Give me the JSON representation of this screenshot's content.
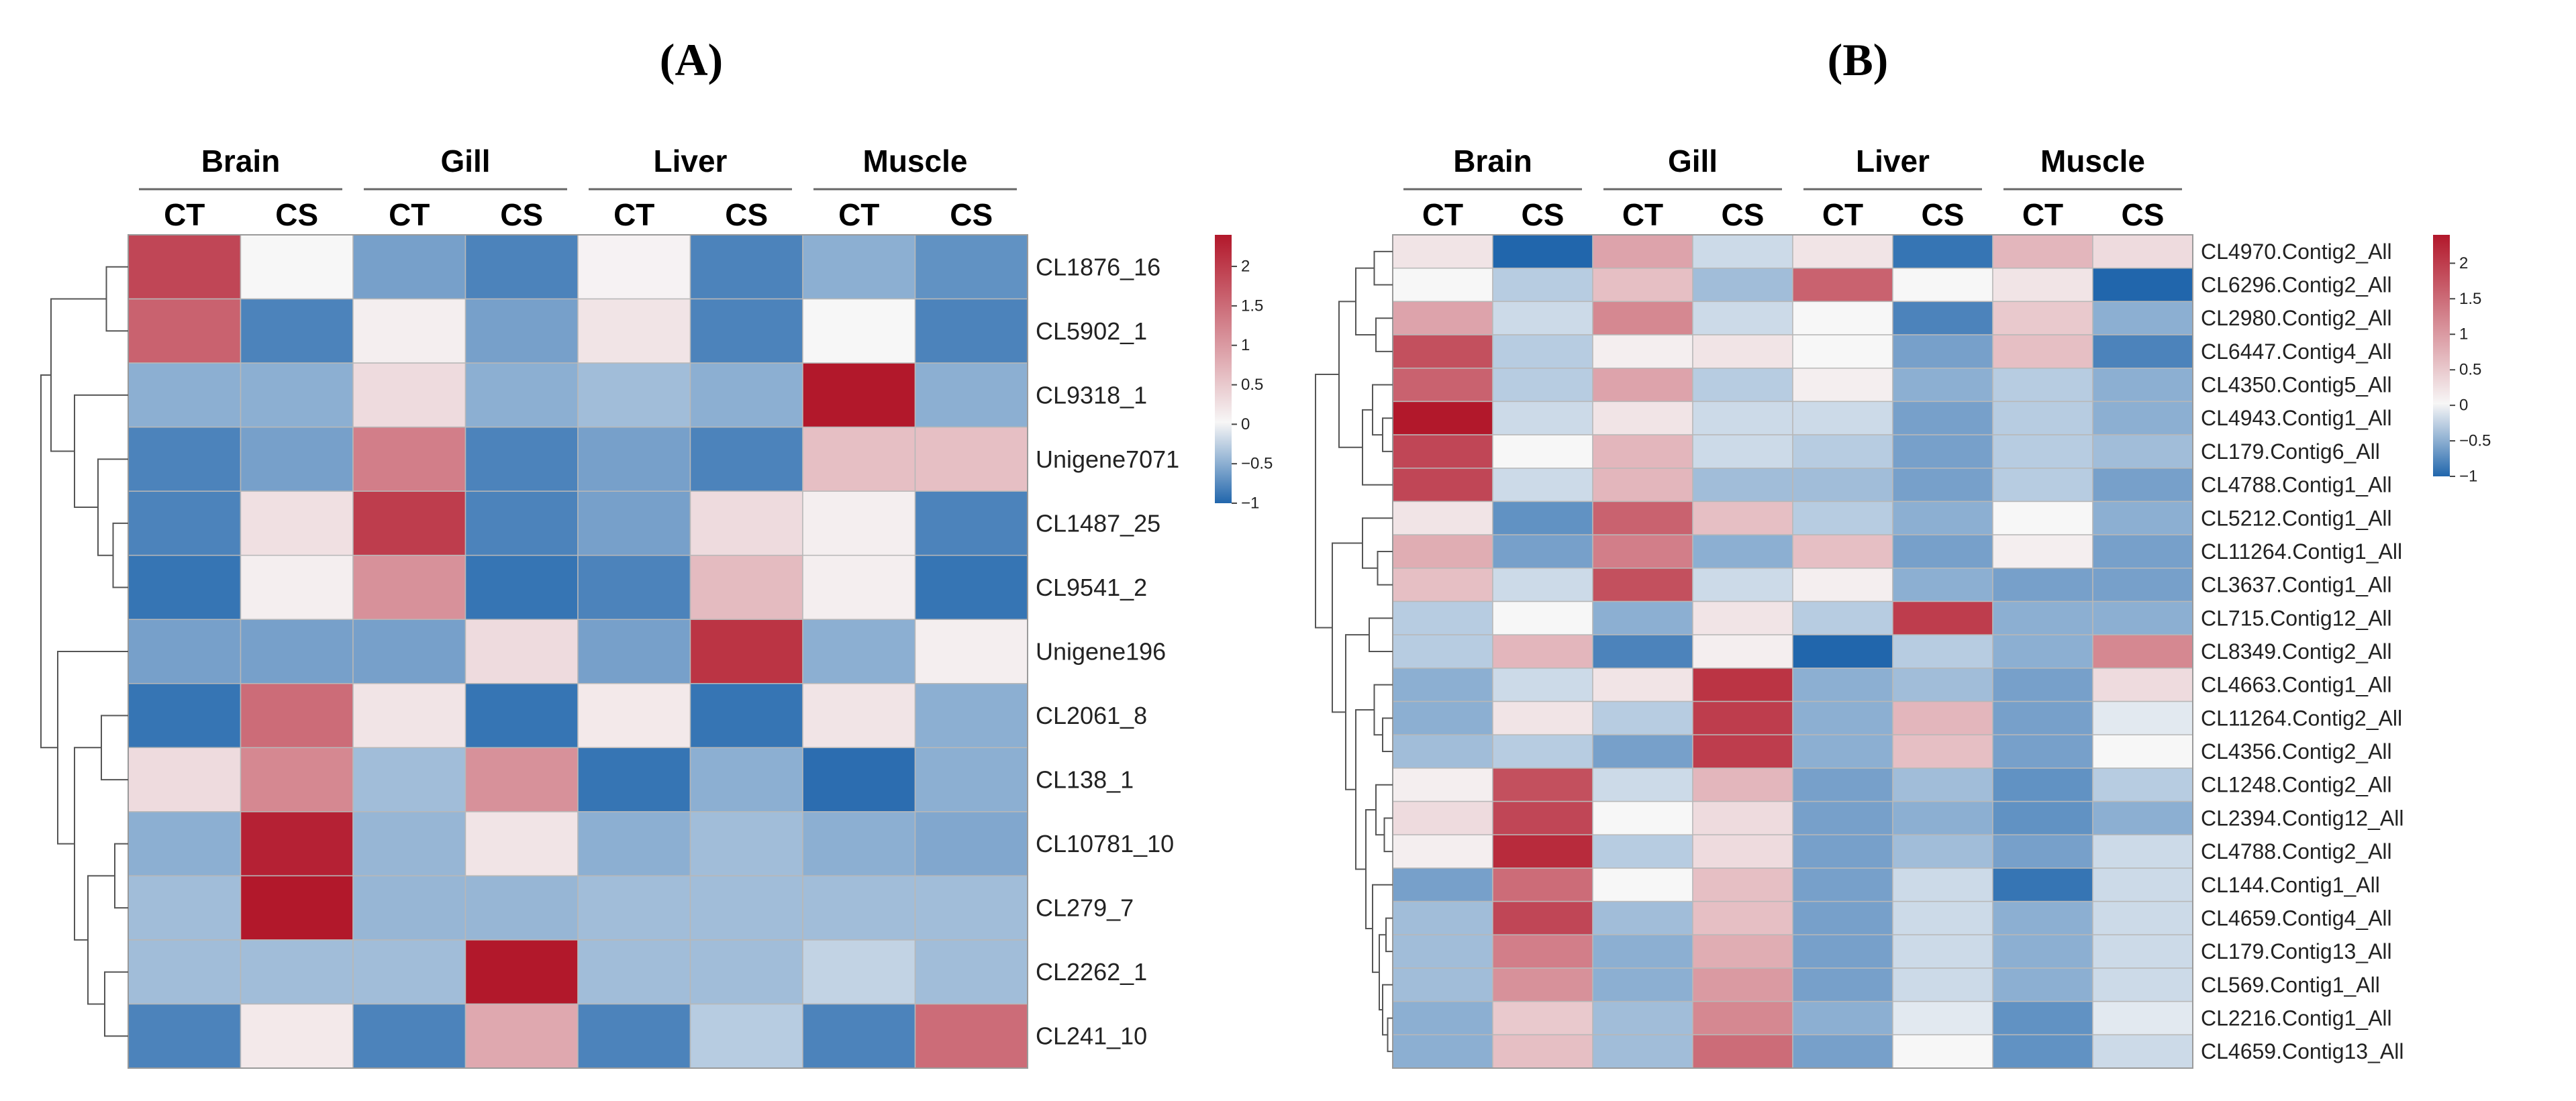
{
  "chart_data": [
    {
      "type": "heatmap",
      "panel_label": "(A)",
      "title": "(A)",
      "tissues": [
        "Brain",
        "Gill",
        "Liver",
        "Muscle"
      ],
      "conditions": [
        "CT",
        "CS"
      ],
      "columns": [
        "Brain CT",
        "Brain CS",
        "Gill CT",
        "Gill CS",
        "Liver CT",
        "Liver CS",
        "Muscle CT",
        "Muscle CS"
      ],
      "rows": [
        "CL1876_16",
        "CL5902_1",
        "CL9318_1",
        "Unigene7071",
        "CL1487_25",
        "CL9541_2",
        "Unigene196",
        "CL2061_8",
        "CL138_1",
        "CL10781_10",
        "CL279_7",
        "CL2262_1",
        "CL241_10"
      ],
      "values": [
        [
          1.9,
          0.0,
          -0.6,
          -0.8,
          0.05,
          -0.8,
          -0.5,
          -0.7
        ],
        [
          1.6,
          -0.8,
          0.1,
          -0.6,
          0.2,
          -0.8,
          0.0,
          -0.8
        ],
        [
          -0.5,
          -0.5,
          0.3,
          -0.5,
          -0.4,
          -0.5,
          2.4,
          -0.5
        ],
        [
          -0.8,
          -0.6,
          1.3,
          -0.8,
          -0.6,
          -0.8,
          0.6,
          0.6
        ],
        [
          -0.8,
          0.25,
          2.0,
          -0.8,
          -0.6,
          0.3,
          0.1,
          -0.8
        ],
        [
          -0.9,
          0.1,
          1.1,
          -0.9,
          -0.8,
          0.65,
          0.1,
          -0.9
        ],
        [
          -0.6,
          -0.6,
          -0.6,
          0.3,
          -0.6,
          2.1,
          -0.5,
          0.1
        ],
        [
          -0.9,
          1.5,
          0.2,
          -0.9,
          0.15,
          -0.9,
          0.2,
          -0.5
        ],
        [
          0.3,
          1.2,
          -0.4,
          1.1,
          -0.9,
          -0.5,
          -0.95,
          -0.5
        ],
        [
          -0.5,
          2.3,
          -0.45,
          0.2,
          -0.5,
          -0.4,
          -0.5,
          -0.55
        ],
        [
          -0.4,
          2.4,
          -0.45,
          -0.45,
          -0.4,
          -0.4,
          -0.4,
          -0.4
        ],
        [
          -0.4,
          -0.4,
          -0.4,
          2.4,
          -0.4,
          -0.4,
          -0.25,
          -0.4
        ],
        [
          -0.8,
          0.15,
          -0.8,
          0.85,
          -0.8,
          -0.3,
          -0.8,
          1.5
        ]
      ],
      "colorbar": {
        "ticks": [
          "2",
          "1.5",
          "1",
          "0.5",
          "0",
          "−0.5",
          "−1"
        ],
        "range": [
          -1,
          2.4
        ]
      },
      "colors": {
        "low": "#2166ac",
        "mid": "#f7f7f7",
        "high": "#b2182b"
      }
    },
    {
      "type": "heatmap",
      "panel_label": "(B)",
      "title": "(B)",
      "tissues": [
        "Brain",
        "Gill",
        "Liver",
        "Muscle"
      ],
      "conditions": [
        "CT",
        "CS"
      ],
      "columns": [
        "Brain CT",
        "Brain CS",
        "Gill CT",
        "Gill CS",
        "Liver CT",
        "Liver CS",
        "Muscle CT",
        "Muscle CS"
      ],
      "rows": [
        "CL4970.Contig2_All",
        "CL6296.Contig2_All",
        "CL2980.Contig2_All",
        "CL6447.Contig4_All",
        "CL4350.Contig5_All",
        "CL4943.Contig1_All",
        "CL179.Contig6_All",
        "CL4788.Contig1_All",
        "CL5212.Contig1_All",
        "CL11264.Contig1_All",
        "CL3637.Contig1_All",
        "CL715.Contig12_All",
        "CL8349.Contig2_All",
        "CL4663.Contig1_All",
        "CL11264.Contig2_All",
        "CL4356.Contig2_All",
        "CL1248.Contig2_All",
        "CL2394.Contig12_All",
        "CL4788.Contig2_All",
        "CL144.Contig1_All",
        "CL4659.Contig4_All",
        "CL179.Contig13_All",
        "CL569.Contig1_All",
        "CL2216.Contig1_All",
        "CL4659.Contig13_All"
      ],
      "values": [
        [
          0.2,
          -1.0,
          0.9,
          -0.2,
          0.2,
          -0.9,
          0.7,
          0.3
        ],
        [
          0.0,
          -0.3,
          0.6,
          -0.4,
          1.6,
          0.0,
          0.2,
          -1.0
        ],
        [
          0.9,
          -0.2,
          1.2,
          -0.2,
          0.0,
          -0.8,
          0.5,
          -0.5
        ],
        [
          1.8,
          -0.3,
          0.1,
          0.2,
          0.0,
          -0.6,
          0.6,
          -0.8
        ],
        [
          1.6,
          -0.3,
          0.9,
          -0.3,
          0.1,
          -0.5,
          -0.3,
          -0.5
        ],
        [
          2.4,
          -0.2,
          0.2,
          -0.2,
          -0.2,
          -0.6,
          -0.3,
          -0.5
        ],
        [
          1.9,
          0.0,
          0.7,
          -0.2,
          -0.3,
          -0.6,
          -0.3,
          -0.4
        ],
        [
          1.9,
          -0.2,
          0.7,
          -0.4,
          -0.4,
          -0.6,
          -0.3,
          -0.6
        ],
        [
          0.2,
          -0.7,
          1.6,
          0.6,
          -0.3,
          -0.5,
          0.0,
          -0.5
        ],
        [
          0.8,
          -0.6,
          1.3,
          -0.5,
          0.6,
          -0.6,
          0.1,
          -0.6
        ],
        [
          0.6,
          -0.2,
          1.8,
          -0.2,
          0.1,
          -0.5,
          -0.6,
          -0.6
        ],
        [
          -0.3,
          0.0,
          -0.5,
          0.2,
          -0.3,
          2.0,
          -0.5,
          -0.5
        ],
        [
          -0.3,
          0.7,
          -0.8,
          0.1,
          -1.0,
          -0.3,
          -0.5,
          1.2
        ],
        [
          -0.5,
          -0.2,
          0.2,
          2.1,
          -0.5,
          -0.4,
          -0.6,
          0.3
        ],
        [
          -0.5,
          0.2,
          -0.3,
          2.0,
          -0.5,
          0.7,
          -0.6,
          -0.1
        ],
        [
          -0.4,
          -0.3,
          -0.6,
          2.0,
          -0.5,
          0.6,
          -0.6,
          0.0
        ],
        [
          0.1,
          1.8,
          -0.2,
          0.7,
          -0.6,
          -0.4,
          -0.7,
          -0.3
        ],
        [
          0.3,
          1.9,
          0.0,
          0.3,
          -0.6,
          -0.5,
          -0.7,
          -0.5
        ],
        [
          0.1,
          2.2,
          -0.3,
          0.3,
          -0.6,
          -0.4,
          -0.6,
          -0.2
        ],
        [
          -0.6,
          1.5,
          0.0,
          0.6,
          -0.6,
          -0.2,
          -0.9,
          -0.2
        ],
        [
          -0.4,
          1.9,
          -0.4,
          0.6,
          -0.6,
          -0.2,
          -0.5,
          -0.2
        ],
        [
          -0.4,
          1.3,
          -0.5,
          0.8,
          -0.6,
          -0.2,
          -0.5,
          -0.2
        ],
        [
          -0.4,
          1.1,
          -0.5,
          1.0,
          -0.6,
          -0.2,
          -0.5,
          -0.2
        ],
        [
          -0.5,
          0.5,
          -0.4,
          1.2,
          -0.5,
          -0.1,
          -0.7,
          -0.1
        ],
        [
          -0.5,
          0.6,
          -0.4,
          1.5,
          -0.6,
          0.0,
          -0.7,
          -0.2
        ]
      ],
      "colorbar": {
        "ticks": [
          "2",
          "1.5",
          "1",
          "0.5",
          "0",
          "−0.5",
          "−1"
        ],
        "range": [
          -1,
          2.4
        ]
      },
      "colors": {
        "low": "#2166ac",
        "mid": "#f7f7f7",
        "high": "#b2182b"
      }
    }
  ]
}
